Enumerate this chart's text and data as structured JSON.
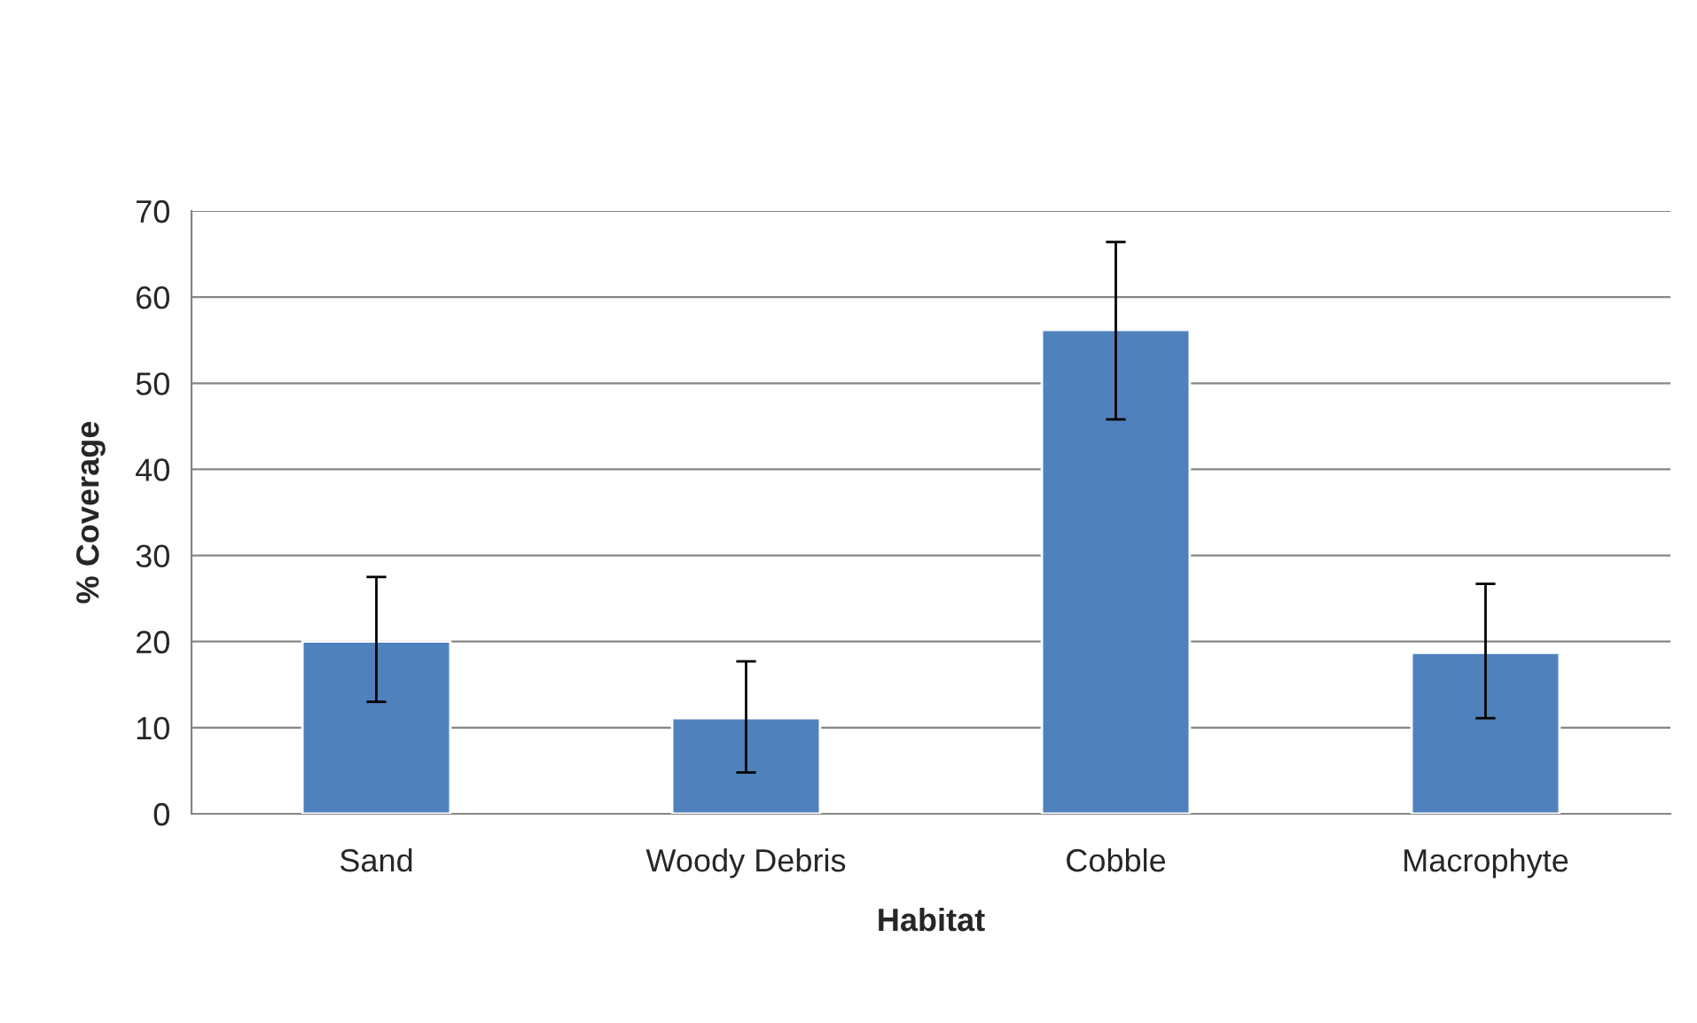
{
  "chart_data": {
    "type": "bar",
    "xlabel": "Habitat",
    "ylabel": "% Coverage",
    "categories": [
      "Sand",
      "Woody Debris",
      "Cobble",
      "Macrophyte"
    ],
    "values": [
      20.0,
      11.1,
      56.2,
      18.7
    ],
    "errors": [
      [
        13.0,
        27.5
      ],
      [
        4.8,
        17.7
      ],
      [
        45.8,
        66.4
      ],
      [
        11.1,
        26.7
      ]
    ],
    "color": "#4f81bd",
    "ylim": [
      0,
      70
    ],
    "yticks": [
      0,
      10,
      20,
      30,
      40,
      50,
      60,
      70
    ],
    "grid": "y",
    "legend": false
  }
}
